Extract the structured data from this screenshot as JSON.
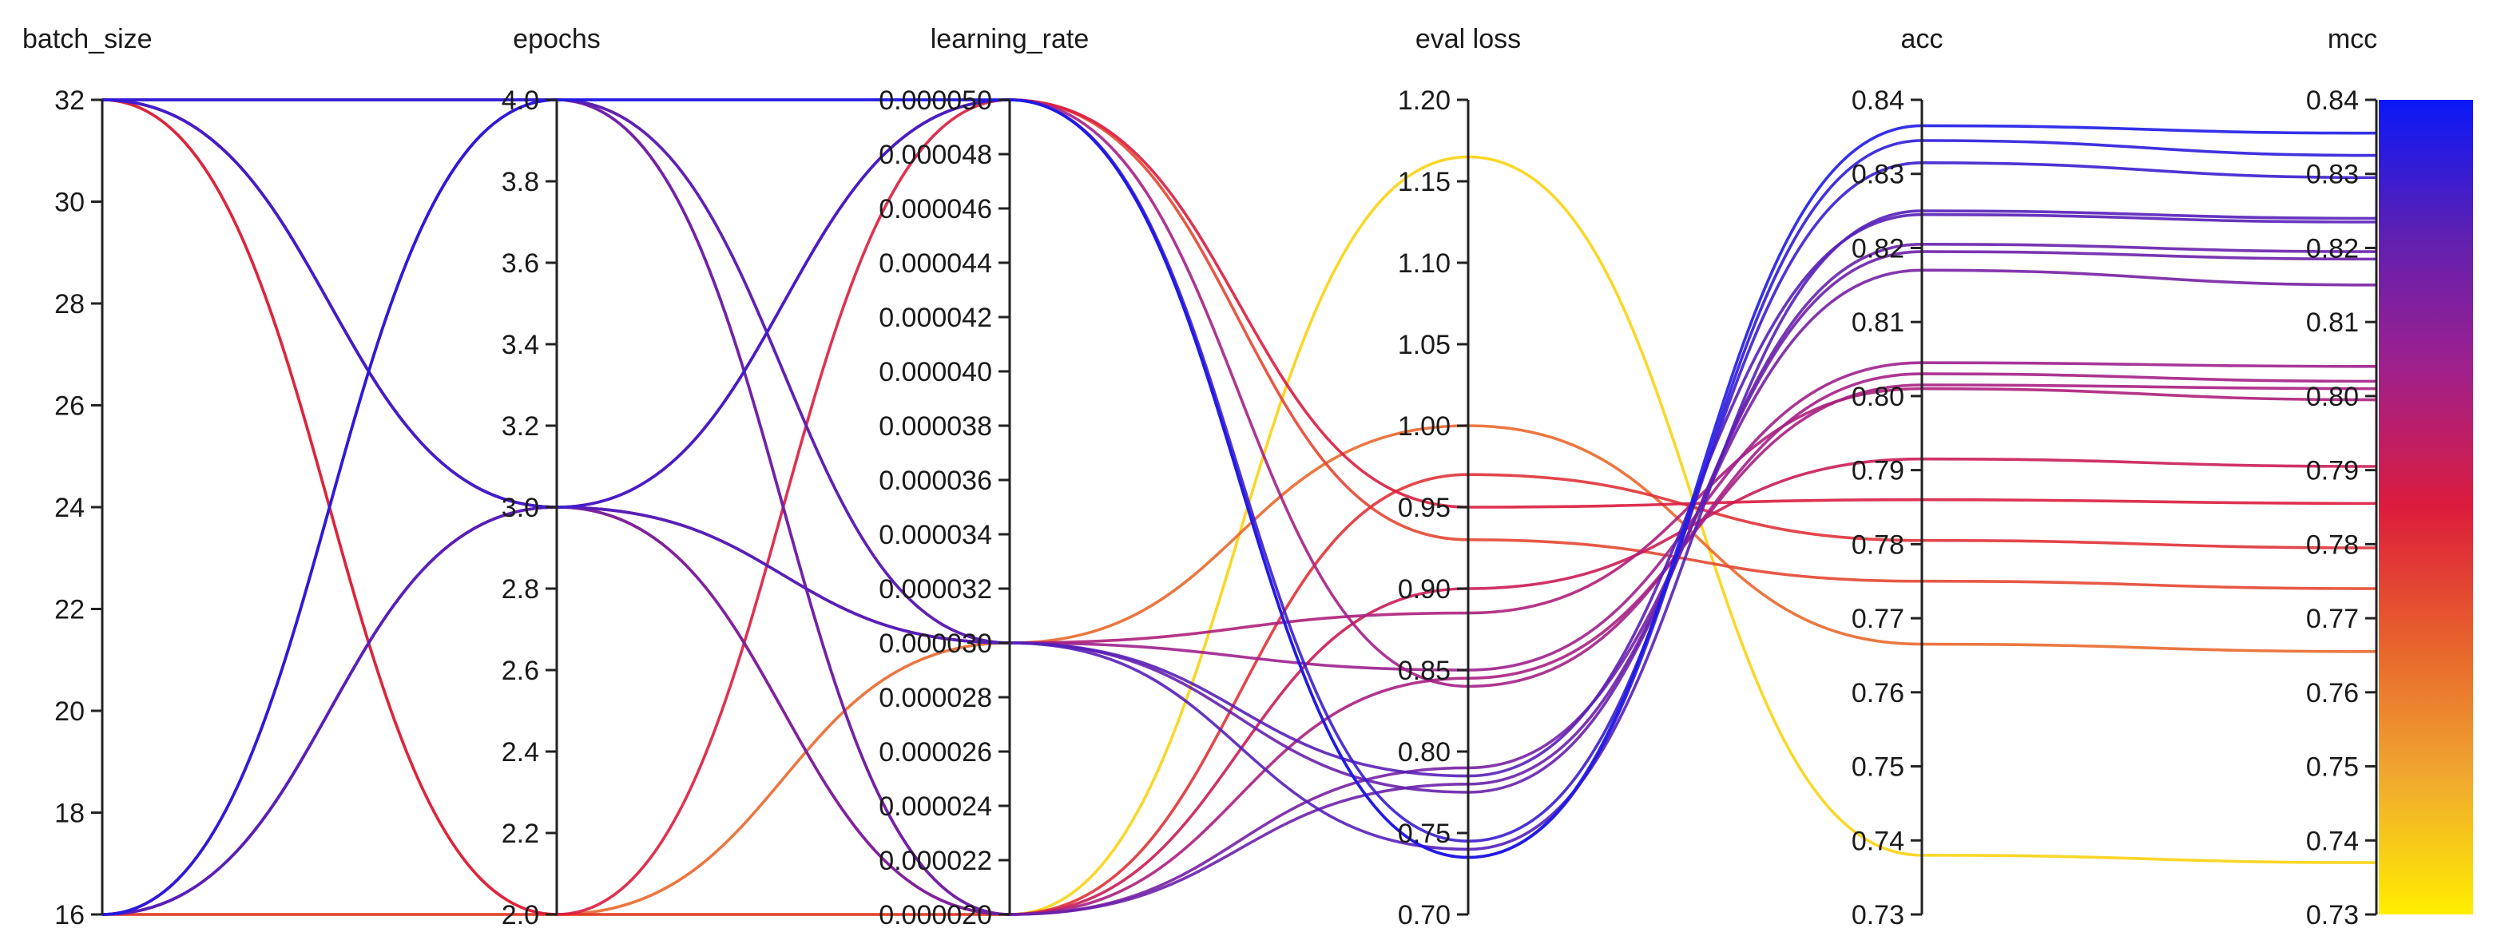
{
  "chart_data": {
    "type": "parallel_coordinates",
    "axes": [
      {
        "key": "batch_size",
        "label": "batch_size",
        "range": [
          16,
          32
        ],
        "ticks": [
          "16",
          "18",
          "20",
          "22",
          "24",
          "26",
          "28",
          "30",
          "32"
        ]
      },
      {
        "key": "epochs",
        "label": "epochs",
        "range": [
          2.0,
          4.0
        ],
        "ticks": [
          "2.0",
          "2.2",
          "2.4",
          "2.6",
          "2.8",
          "3.0",
          "3.2",
          "3.4",
          "3.6",
          "3.8",
          "4.0"
        ]
      },
      {
        "key": "learning_rate",
        "label": "learning_rate",
        "range": [
          2e-05,
          5e-05
        ],
        "ticks": [
          "0.000020",
          "0.000022",
          "0.000024",
          "0.000026",
          "0.000028",
          "0.000030",
          "0.000032",
          "0.000034",
          "0.000036",
          "0.000038",
          "0.000040",
          "0.000042",
          "0.000044",
          "0.000046",
          "0.000048",
          "0.000050"
        ]
      },
      {
        "key": "eval_loss",
        "label": "eval loss",
        "range": [
          0.7,
          1.2
        ],
        "ticks": [
          "0.70",
          "0.75",
          "0.80",
          "0.85",
          "0.90",
          "0.95",
          "1.00",
          "1.05",
          "1.10",
          "1.15",
          "1.20"
        ]
      },
      {
        "key": "acc",
        "label": "acc",
        "range": [
          0.73,
          0.84
        ],
        "ticks": [
          "0.73",
          "0.74",
          "0.75",
          "0.76",
          "0.77",
          "0.78",
          "0.79",
          "0.80",
          "0.81",
          "0.82",
          "0.83",
          "0.84"
        ]
      },
      {
        "key": "mcc",
        "label": "mcc",
        "range": [
          0.73,
          0.84
        ],
        "ticks": [
          "0.73",
          "0.74",
          "0.75",
          "0.76",
          "0.77",
          "0.78",
          "0.79",
          "0.80",
          "0.81",
          "0.82",
          "0.83",
          "0.84"
        ]
      }
    ],
    "color_by": "mcc",
    "colormap": [
      "#ffee00",
      "#f0a830",
      "#e8642c",
      "#dc1c3c",
      "#a0208c",
      "#6020b0",
      "#0a18f8"
    ],
    "runs": [
      {
        "batch_size": 16,
        "epochs": 4.0,
        "learning_rate": 5e-05,
        "eval_loss": 0.735,
        "acc": 0.8365,
        "mcc": 0.8355
      },
      {
        "batch_size": 32,
        "epochs": 4.0,
        "learning_rate": 5e-05,
        "eval_loss": 0.735,
        "acc": 0.8345,
        "mcc": 0.8325
      },
      {
        "batch_size": 32,
        "epochs": 3.0,
        "learning_rate": 5e-05,
        "eval_loss": 0.745,
        "acc": 0.8315,
        "mcc": 0.8295
      },
      {
        "batch_size": 16,
        "epochs": 3.0,
        "learning_rate": 3e-05,
        "eval_loss": 0.74,
        "acc": 0.825,
        "mcc": 0.824
      },
      {
        "batch_size": 32,
        "epochs": 4.0,
        "learning_rate": 3e-05,
        "eval_loss": 0.785,
        "acc": 0.8245,
        "mcc": 0.8235
      },
      {
        "batch_size": 16,
        "epochs": 3.0,
        "learning_rate": 3e-05,
        "eval_loss": 0.775,
        "acc": 0.8205,
        "mcc": 0.8195
      },
      {
        "batch_size": 32,
        "epochs": 4.0,
        "learning_rate": 2e-05,
        "eval_loss": 0.78,
        "acc": 0.8195,
        "mcc": 0.8185
      },
      {
        "batch_size": 32,
        "epochs": 3.0,
        "learning_rate": 2e-05,
        "eval_loss": 0.79,
        "acc": 0.817,
        "mcc": 0.815
      },
      {
        "batch_size": 16,
        "epochs": 4.0,
        "learning_rate": 3e-05,
        "eval_loss": 0.85,
        "acc": 0.8045,
        "mcc": 0.804
      },
      {
        "batch_size": 32,
        "epochs": 3.0,
        "learning_rate": 5e-05,
        "eval_loss": 0.84,
        "acc": 0.803,
        "mcc": 0.802
      },
      {
        "batch_size": 16,
        "epochs": 4.0,
        "learning_rate": 2e-05,
        "eval_loss": 0.845,
        "acc": 0.8015,
        "mcc": 0.801
      },
      {
        "batch_size": 16,
        "epochs": 3.0,
        "learning_rate": 3e-05,
        "eval_loss": 0.885,
        "acc": 0.801,
        "mcc": 0.7995
      },
      {
        "batch_size": 32,
        "epochs": 3.0,
        "learning_rate": 2e-05,
        "eval_loss": 0.9,
        "acc": 0.7915,
        "mcc": 0.7905
      },
      {
        "batch_size": 32,
        "epochs": 2.0,
        "learning_rate": 5e-05,
        "eval_loss": 0.95,
        "acc": 0.786,
        "mcc": 0.7855
      },
      {
        "batch_size": 16,
        "epochs": 2.0,
        "learning_rate": 2e-05,
        "eval_loss": 0.97,
        "acc": 0.7805,
        "mcc": 0.7795
      },
      {
        "batch_size": 32,
        "epochs": 3.0,
        "learning_rate": 5e-05,
        "eval_loss": 0.93,
        "acc": 0.775,
        "mcc": 0.774
      },
      {
        "batch_size": 32,
        "epochs": 2.0,
        "learning_rate": 3e-05,
        "eval_loss": 1.0,
        "acc": 0.7665,
        "mcc": 0.7655
      },
      {
        "batch_size": 16,
        "epochs": 2.0,
        "learning_rate": 2e-05,
        "eval_loss": 1.165,
        "acc": 0.738,
        "mcc": 0.737
      }
    ]
  }
}
